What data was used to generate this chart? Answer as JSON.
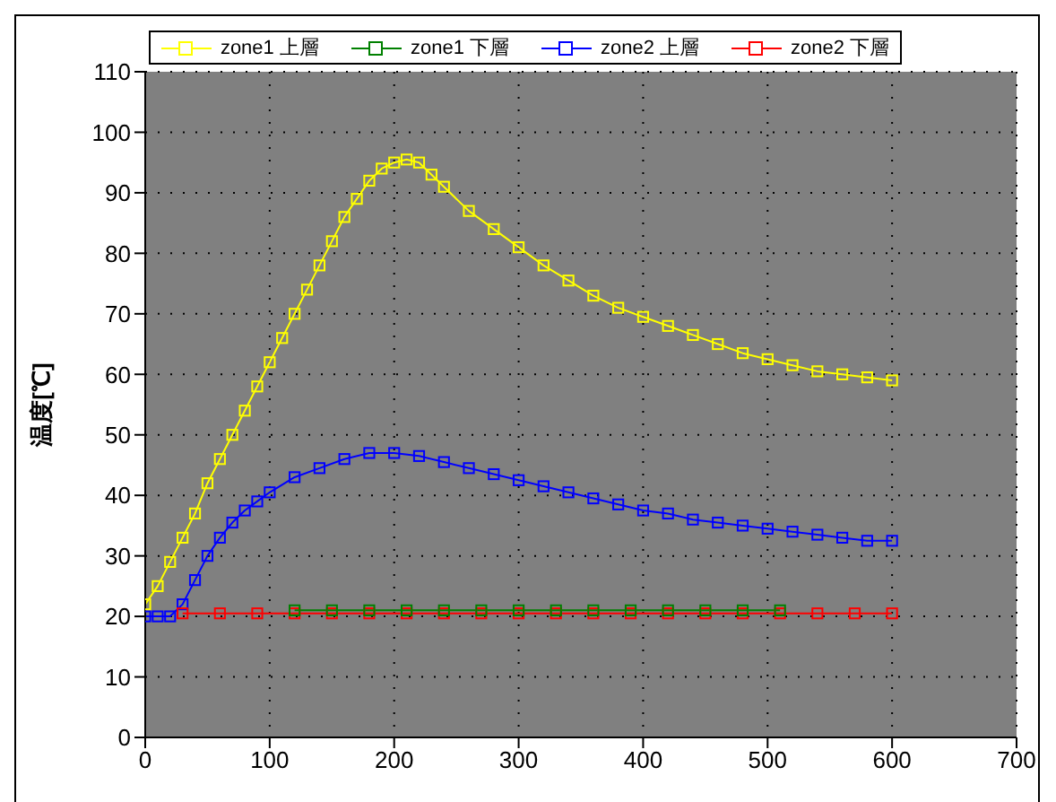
{
  "chart_data": {
    "type": "line",
    "ylabel": "温度[℃]",
    "xlim": [
      0,
      700
    ],
    "xticks": [
      0,
      100,
      200,
      300,
      400,
      500,
      600,
      700
    ],
    "ylim": [
      0,
      110
    ],
    "yticks": [
      0,
      10,
      20,
      30,
      40,
      50,
      60,
      70,
      80,
      90,
      100,
      110
    ],
    "grid": true,
    "legend": "top",
    "marker": "square",
    "line_style": "solid",
    "series": [
      {
        "name": "zone2 上層",
        "color": "#0000ff",
        "x": [
          0,
          10,
          20,
          30,
          40,
          50,
          60,
          70,
          80,
          90,
          100,
          120,
          140,
          160,
          180,
          200,
          220,
          240,
          260,
          280,
          300,
          320,
          340,
          360,
          380,
          400,
          420,
          440,
          460,
          480,
          500,
          520,
          540,
          560,
          580,
          600
        ],
        "values": [
          20,
          20,
          20,
          22,
          26,
          30,
          33,
          35.5,
          37.5,
          39,
          40.5,
          43,
          44.5,
          46,
          47,
          47,
          46.5,
          45.5,
          44.5,
          43.5,
          42.5,
          41.5,
          40.5,
          39.5,
          38.5,
          37.5,
          37,
          36,
          35.5,
          35,
          34.5,
          34,
          33.5,
          33,
          32.5,
          32.5
        ]
      },
      {
        "name": "zone2 下層",
        "color": "#ff0000",
        "x": [
          30,
          60,
          90,
          120,
          150,
          180,
          210,
          240,
          270,
          300,
          330,
          360,
          390,
          420,
          450,
          480,
          510,
          540,
          570,
          600
        ],
        "values": [
          20.5,
          20.5,
          20.5,
          20.5,
          20.5,
          20.5,
          20.5,
          20.5,
          20.5,
          20.5,
          20.5,
          20.5,
          20.5,
          20.5,
          20.5,
          20.5,
          20.5,
          20.5,
          20.5,
          20.5
        ]
      },
      {
        "name": "zone1 上層",
        "color": "#ffff00",
        "x": [
          0,
          10,
          20,
          30,
          40,
          50,
          60,
          70,
          80,
          90,
          100,
          110,
          120,
          130,
          140,
          150,
          160,
          170,
          180,
          190,
          200,
          210,
          220,
          230,
          240,
          260,
          280,
          300,
          320,
          340,
          360,
          380,
          400,
          420,
          440,
          460,
          480,
          500,
          520,
          540,
          560,
          580,
          600
        ],
        "values": [
          22,
          25,
          29,
          33,
          37,
          42,
          46,
          50,
          54,
          58,
          62,
          66,
          70,
          74,
          78,
          82,
          86,
          89,
          92,
          94,
          95,
          95.5,
          95,
          93,
          91,
          87,
          84,
          81,
          78,
          75.5,
          73,
          71,
          69.5,
          68,
          66.5,
          65,
          63.5,
          62.5,
          61.5,
          60.5,
          60,
          59.5,
          59
        ]
      },
      {
        "name": "zone1 下層",
        "color": "#008000",
        "x": [
          120,
          150,
          180,
          210,
          240,
          270,
          300,
          330,
          360,
          390,
          420,
          450,
          480,
          510
        ],
        "values": [
          21,
          21,
          21,
          21,
          21,
          21,
          21,
          21,
          21,
          21,
          21,
          21,
          21,
          21
        ]
      }
    ]
  }
}
